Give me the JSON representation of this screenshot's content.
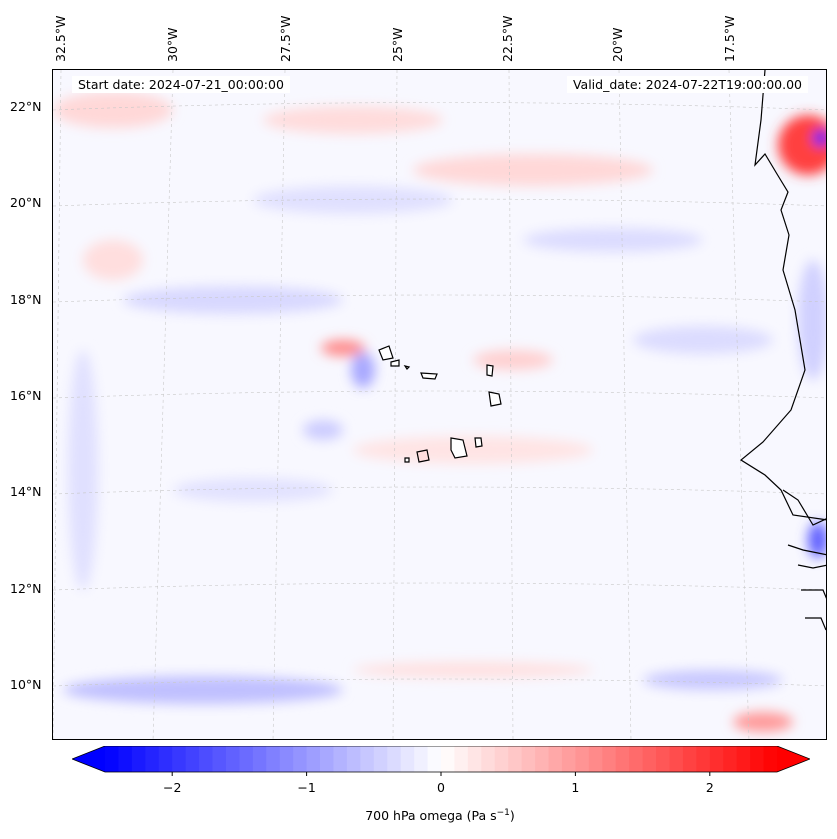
{
  "header": {
    "start_date": "Start date: 2024-07-21_00:00:00",
    "valid_date": "Valid_date: 2024-07-22T19:00:00.00"
  },
  "axes": {
    "lon_labels": [
      "32.5°W",
      "30°W",
      "27.5°W",
      "25°W",
      "22.5°W",
      "20°W",
      "17.5°W"
    ],
    "lat_labels": [
      "22°N",
      "20°N",
      "18°N",
      "16°N",
      "14°N",
      "12°N",
      "10°N"
    ]
  },
  "colorbar": {
    "ticks": [
      "−2",
      "−1",
      "0",
      "1",
      "2"
    ],
    "tick_values": [
      -2,
      -1,
      0,
      1,
      2
    ],
    "range": [
      -2.5,
      2.5
    ],
    "label_main": "700 hPa omega (Pa s",
    "label_sup": "−1",
    "label_end": ")",
    "colors": {
      "low": "#0000ff",
      "mid": "#ffffff",
      "high": "#ff0000"
    }
  },
  "map": {
    "variable": "700 hPa omega",
    "coastline_color": "#000000",
    "gridline_color": "#c8c8c8"
  }
}
